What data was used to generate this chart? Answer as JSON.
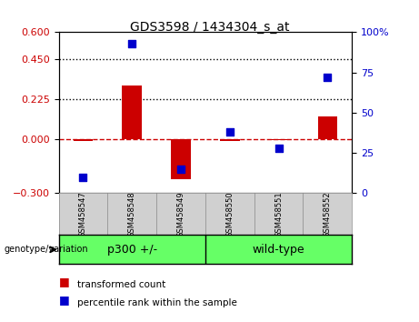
{
  "title": "GDS3598 / 1434304_s_at",
  "categories": [
    "GSM458547",
    "GSM458548",
    "GSM458549",
    "GSM458550",
    "GSM458551",
    "GSM458552"
  ],
  "bar_values": [
    -0.01,
    0.3,
    -0.22,
    -0.01,
    -0.005,
    0.13
  ],
  "scatter_right_values": [
    10,
    93,
    15,
    38,
    28,
    72
  ],
  "ylim_left": [
    -0.3,
    0.6
  ],
  "ylim_right": [
    0,
    100
  ],
  "yticks_left": [
    -0.3,
    0.0,
    0.225,
    0.45,
    0.6
  ],
  "yticks_right": [
    0,
    25,
    50,
    75,
    100
  ],
  "hline_y": 0.0,
  "dotted_lines": [
    0.225,
    0.45
  ],
  "bar_color": "#cc0000",
  "scatter_color": "#0000cc",
  "group1_label": "p300 +/-",
  "group2_label": "wild-type",
  "group_color": "#66ff66",
  "genotype_label": "genotype/variation",
  "legend_bar_label": "transformed count",
  "legend_scatter_label": "percentile rank within the sample",
  "bar_width": 0.4,
  "bg_color": "#d0d0d0"
}
